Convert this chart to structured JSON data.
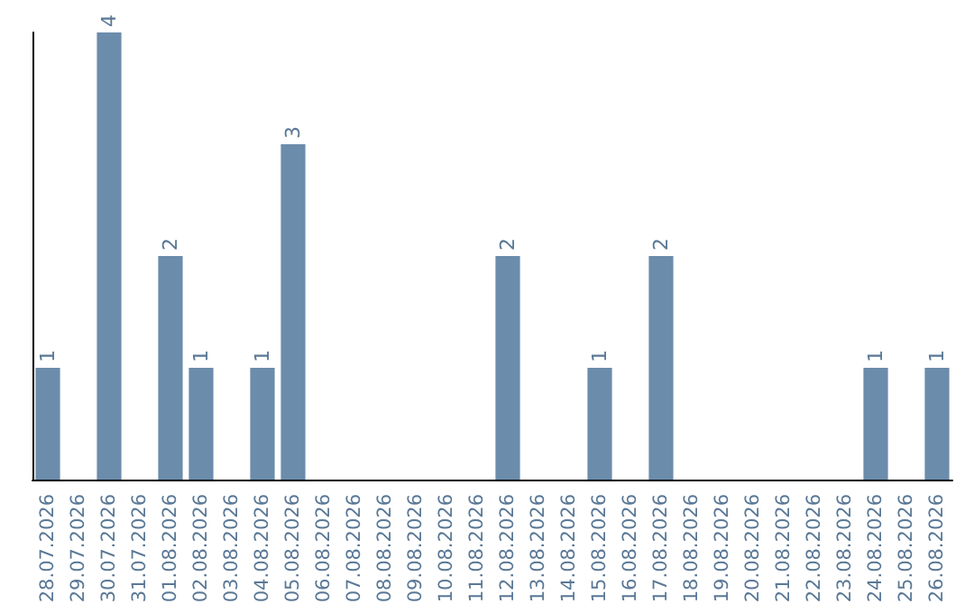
{
  "chart_data": {
    "type": "bar",
    "categories": [
      "28.07.2026",
      "29.07.2026",
      "30.07.2026",
      "31.07.2026",
      "01.08.2026",
      "02.08.2026",
      "03.08.2026",
      "04.08.2026",
      "05.08.2026",
      "06.08.2026",
      "07.08.2026",
      "08.08.2026",
      "09.08.2026",
      "10.08.2026",
      "11.08.2026",
      "12.08.2026",
      "13.08.2026",
      "14.08.2026",
      "15.08.2026",
      "16.08.2026",
      "17.08.2026",
      "18.08.2026",
      "19.08.2026",
      "20.08.2026",
      "21.08.2026",
      "22.08.2026",
      "23.08.2026",
      "24.08.2026",
      "25.08.2026",
      "26.08.2026"
    ],
    "values": [
      1,
      0,
      4,
      0,
      2,
      1,
      0,
      1,
      3,
      0,
      0,
      0,
      0,
      0,
      0,
      2,
      0,
      0,
      1,
      0,
      2,
      0,
      0,
      0,
      0,
      0,
      0,
      1,
      0,
      1
    ],
    "value_labels": [
      "1",
      null,
      "4",
      null,
      "2",
      "1",
      null,
      "1",
      "3",
      null,
      null,
      null,
      null,
      null,
      null,
      "2",
      null,
      null,
      "1",
      null,
      "2",
      null,
      null,
      null,
      null,
      null,
      null,
      "1",
      null,
      "1"
    ],
    "color": "#6b8cab",
    "ylim": [
      0,
      4
    ],
    "tick_labels": "x",
    "grid": false
  }
}
